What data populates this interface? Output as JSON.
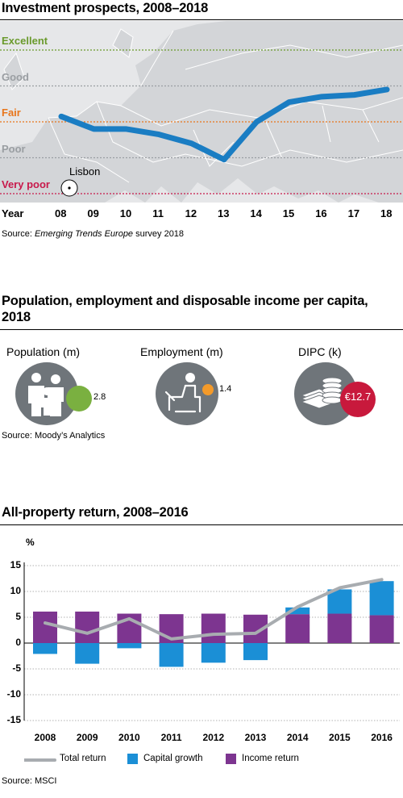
{
  "prospects": {
    "title": "Investment prospects, 2008–2018",
    "levels": [
      {
        "label": "Excellent",
        "value": 5,
        "color": "#6a9a2c"
      },
      {
        "label": "Good",
        "value": 4,
        "color": "#9a9ea2"
      },
      {
        "label": "Fair",
        "value": 3,
        "color": "#e8761c"
      },
      {
        "label": "Poor",
        "value": 2,
        "color": "#9a9ea2"
      },
      {
        "label": "Very poor",
        "value": 1,
        "color": "#c8194b"
      }
    ],
    "year_label": "Year",
    "years": [
      "08",
      "09",
      "10",
      "11",
      "12",
      "13",
      "14",
      "15",
      "16",
      "17",
      "18"
    ],
    "city_label": "Lisbon",
    "source_prefix": "Source: ",
    "source_italic": "Emerging Trends Europe",
    "source_suffix": " survey 2018",
    "chart_data": {
      "type": "line",
      "x": [
        "08",
        "09",
        "10",
        "11",
        "12",
        "13",
        "14",
        "15",
        "16",
        "17",
        "18"
      ],
      "values": [
        3.15,
        2.8,
        2.8,
        2.65,
        2.4,
        1.95,
        3.0,
        3.55,
        3.7,
        3.75,
        3.9
      ],
      "ylim": [
        1,
        5
      ],
      "line_color": "#1a7dc3"
    }
  },
  "population": {
    "title": "Population, employment and disposable income per capita, 2018",
    "indicators": [
      {
        "label": "Population (m)",
        "value": "2.8",
        "color": "#7ab040"
      },
      {
        "label": "Employment (m)",
        "value": "1.4",
        "color": "#f39a2a"
      },
      {
        "label": "DIPC (k)",
        "value": "€12.7",
        "color": "#c8193c"
      }
    ],
    "source": "Source: Moody’s Analytics"
  },
  "returns": {
    "title": "All-property return, 2008–2016",
    "unit": "%",
    "source": "Source: MSCI",
    "legend": {
      "total": "Total return",
      "capital": "Capital growth",
      "income": "Income return"
    },
    "colors": {
      "total": "#a8acb0",
      "capital": "#1b8fd6",
      "income": "#7d3590"
    },
    "y_ticks": [
      "15",
      "10",
      "5",
      "0",
      "-5",
      "-10",
      "-15"
    ],
    "chart_data": {
      "type": "bar",
      "categories": [
        "2008",
        "2009",
        "2010",
        "2011",
        "2012",
        "2013",
        "2014",
        "2015",
        "2016"
      ],
      "series": [
        {
          "name": "Income return",
          "values": [
            6.1,
            6.1,
            5.7,
            5.6,
            5.7,
            5.5,
            5.6,
            5.7,
            5.4
          ]
        },
        {
          "name": "Capital growth",
          "values": [
            -2.1,
            -4.0,
            -1.0,
            -4.6,
            -3.8,
            -3.3,
            1.3,
            4.7,
            6.6
          ]
        },
        {
          "name": "Total return",
          "values": [
            3.9,
            1.9,
            4.7,
            0.8,
            1.7,
            1.9,
            7.0,
            10.7,
            12.3
          ]
        }
      ],
      "ylim": [
        -15,
        15
      ],
      "grid": true
    }
  }
}
